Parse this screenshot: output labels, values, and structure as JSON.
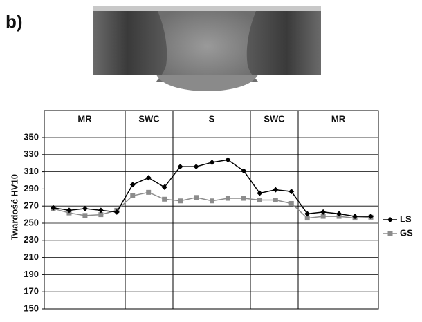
{
  "chart_data": {
    "type": "line",
    "panel_label": "b)",
    "y_label": "Twardość HV10",
    "zones": [
      "MR",
      "SWC",
      "S",
      "SWC",
      "MR"
    ],
    "series": [
      {
        "name": "LS",
        "color": "#000000",
        "marker": "diamond",
        "values": [
          268,
          265,
          267,
          265,
          263,
          295,
          303,
          292,
          316,
          316,
          321,
          324,
          311,
          285,
          289,
          287,
          261,
          263,
          261,
          258,
          258
        ]
      },
      {
        "name": "GS",
        "color": "#8c8c8c",
        "marker": "square",
        "values": [
          267,
          262,
          259,
          260,
          265,
          282,
          286,
          278,
          276,
          280,
          276,
          279,
          279,
          277,
          277,
          273,
          256,
          258,
          258,
          256,
          257
        ]
      }
    ],
    "ylim": [
      150,
      350
    ],
    "yticks": [
      150,
      170,
      190,
      210,
      230,
      250,
      270,
      290,
      310,
      330,
      350
    ],
    "grid": true
  }
}
